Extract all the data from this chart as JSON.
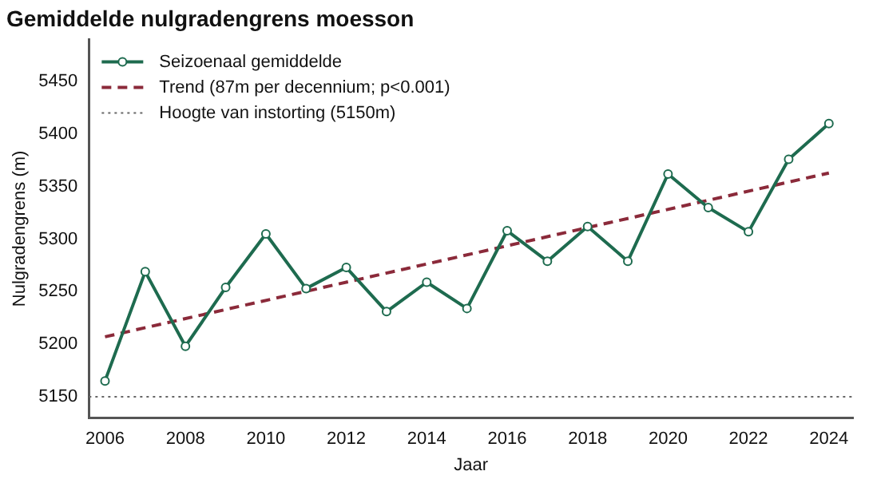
{
  "chart_data": {
    "type": "line",
    "title": "Gemiddelde nulgradengrens moesson",
    "xlabel": "Jaar",
    "ylabel": "Nulgradengrens (m)",
    "x": [
      2006,
      2007,
      2008,
      2009,
      2010,
      2011,
      2012,
      2013,
      2014,
      2015,
      2016,
      2017,
      2018,
      2019,
      2020,
      2021,
      2022,
      2023,
      2024
    ],
    "series": [
      {
        "name": "Seizoenaal gemiddelde",
        "color": "#1e6b4f",
        "marker": "circle",
        "line_style": "solid",
        "values": [
          5165,
          5269,
          5198,
          5254,
          5305,
          5253,
          5273,
          5231,
          5259,
          5234,
          5308,
          5279,
          5312,
          5279,
          5362,
          5330,
          5307,
          5376,
          5410
        ]
      },
      {
        "name": "Trend (87m per decennium; p<0.001)",
        "type": "line",
        "color": "#8b2a3a",
        "marker": "none",
        "line_style": "dashed",
        "x": [
          2006,
          2024
        ],
        "values": [
          5207,
          5363
        ]
      }
    ],
    "ref_lines": [
      {
        "axis": "y",
        "value": 5150,
        "label": "Hoogte van instorting (5150m)",
        "color": "#666666",
        "line_style": "dotted"
      }
    ],
    "xlim": [
      2005.6,
      2024.6
    ],
    "xticks": [
      2006,
      2008,
      2010,
      2012,
      2014,
      2016,
      2018,
      2020,
      2022,
      2024
    ],
    "ylim": [
      5130,
      5490
    ],
    "yticks": [
      5150,
      5200,
      5250,
      5300,
      5350,
      5400,
      5450
    ],
    "grid": false,
    "legend": "top left"
  }
}
